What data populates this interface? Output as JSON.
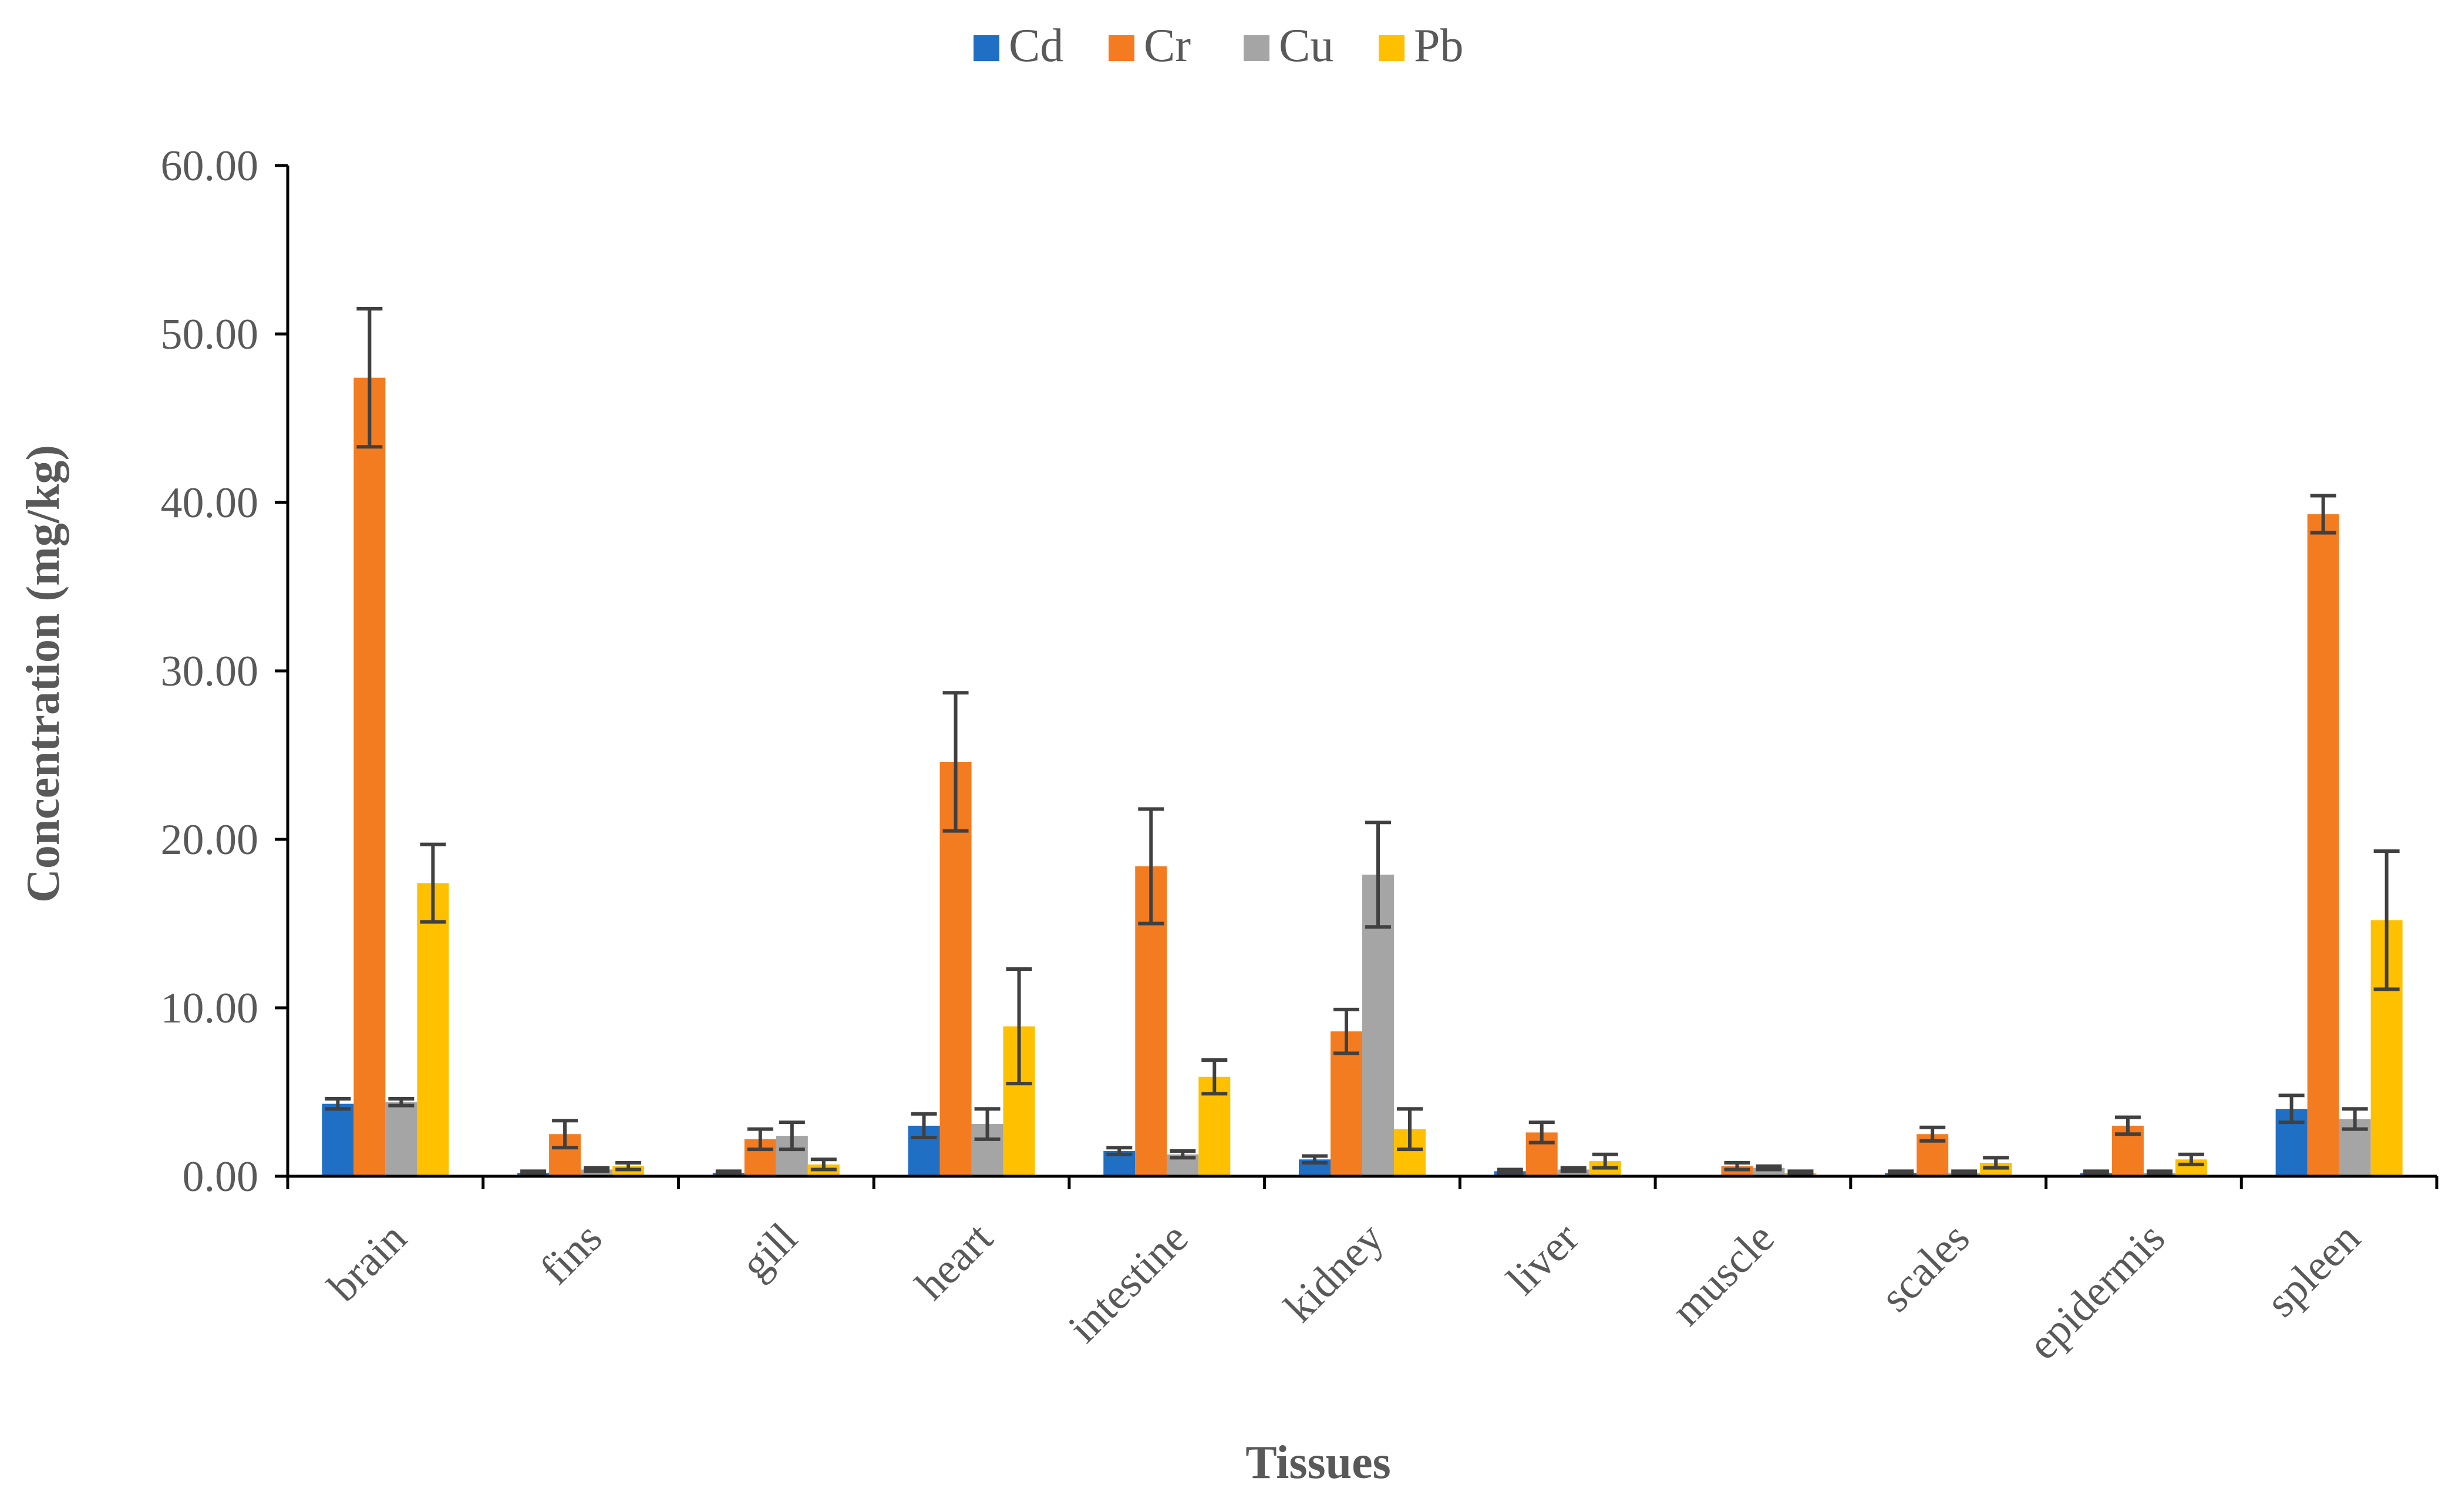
{
  "chart_data": {
    "type": "bar",
    "title": "",
    "xlabel": "Tissues",
    "ylabel": "Concentration (mg/kg)",
    "ylim": [
      0,
      60
    ],
    "ytick_step": 10,
    "ytick_labels": [
      "0.00",
      "10.00",
      "20.00",
      "30.00",
      "40.00",
      "50.00",
      "60.00"
    ],
    "grid": false,
    "legend_position": "top-center",
    "categories": [
      "brain",
      "fins",
      "gill",
      "heart",
      "intestine",
      "kidney",
      "liver",
      "muscle",
      "scales",
      "epidermis",
      "spleen"
    ],
    "series": [
      {
        "name": "Cd",
        "color": "#1F6FC5",
        "values": [
          4.3,
          0.2,
          0.2,
          3.0,
          1.5,
          1.0,
          0.3,
          0.0,
          0.2,
          0.2,
          4.0
        ],
        "errors": [
          0.3,
          0.1,
          0.1,
          0.7,
          0.2,
          0.2,
          0.1,
          0.0,
          0.1,
          0.1,
          0.8
        ]
      },
      {
        "name": "Cr",
        "color": "#F47C20",
        "values": [
          47.4,
          2.5,
          2.2,
          24.6,
          18.4,
          8.6,
          2.6,
          0.6,
          2.5,
          3.0,
          39.3
        ],
        "errors": [
          4.1,
          0.8,
          0.6,
          4.1,
          3.4,
          1.3,
          0.6,
          0.2,
          0.4,
          0.5,
          1.1
        ]
      },
      {
        "name": "Cu",
        "color": "#A5A5A5",
        "values": [
          4.4,
          0.4,
          2.4,
          3.1,
          1.3,
          17.9,
          0.4,
          0.5,
          0.2,
          0.2,
          3.4
        ],
        "errors": [
          0.2,
          0.1,
          0.8,
          0.9,
          0.2,
          3.1,
          0.1,
          0.1,
          0.1,
          0.1,
          0.6
        ]
      },
      {
        "name": "Pb",
        "color": "#FFC000",
        "values": [
          17.4,
          0.6,
          0.7,
          8.9,
          5.9,
          2.8,
          0.9,
          0.2,
          0.8,
          1.0,
          15.2
        ],
        "errors": [
          2.3,
          0.2,
          0.3,
          3.4,
          1.0,
          1.2,
          0.4,
          0.1,
          0.3,
          0.3,
          4.1
        ]
      }
    ]
  },
  "colors": {
    "axis": "#000000",
    "error_bar": "#404040",
    "text": "#595959"
  }
}
